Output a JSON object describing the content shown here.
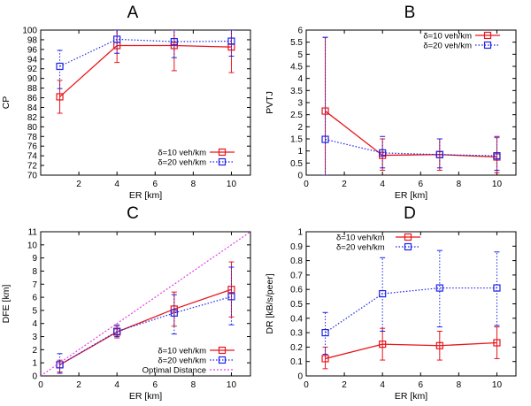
{
  "colors": {
    "s10": "#e8141b",
    "s20": "#1c23e6",
    "optimal": "#e040e8",
    "axis": "#000000"
  },
  "chart_data": [
    {
      "type": "line",
      "panel_title": "A",
      "xlabel": "ER [km]",
      "ylabel": "CP",
      "xlim": [
        0,
        11
      ],
      "ylim": [
        70,
        100
      ],
      "xticks": [
        "2",
        "4",
        "6",
        "8",
        "10"
      ],
      "yticks": [
        "70",
        "72",
        "74",
        "76",
        "78",
        "80",
        "82",
        "84",
        "86",
        "88",
        "90",
        "92",
        "94",
        "96",
        "98",
        "100"
      ],
      "legend_position": "bottom-right",
      "series": [
        {
          "name": "δ=10 veh/km",
          "key": "s10",
          "x": [
            1,
            4,
            7,
            10
          ],
          "y": [
            86.2,
            96.8,
            96.8,
            96.5
          ],
          "err_low": [
            82.8,
            93.3,
            91.6,
            91.2
          ],
          "err_high": [
            89.6,
            100.0,
            100.0,
            100.0
          ]
        },
        {
          "name": "δ=20 veh/km",
          "key": "s20",
          "x": [
            1,
            4,
            7,
            10
          ],
          "y": [
            92.5,
            98.1,
            97.6,
            97.7
          ],
          "err_low": [
            87.9,
            95.2,
            94.3,
            94.6
          ],
          "err_high": [
            95.8,
            100.0,
            100.0,
            100.0
          ]
        }
      ]
    },
    {
      "type": "line",
      "panel_title": "B",
      "xlabel": "ER [km]",
      "ylabel": "PVTJ",
      "xlim": [
        0,
        11
      ],
      "ylim": [
        0,
        6
      ],
      "xticks": [
        "0",
        "2",
        "4",
        "6",
        "8",
        "10"
      ],
      "yticks": [
        "0",
        "0.5",
        "1",
        "1.5",
        "2",
        "2.5",
        "3",
        "3.5",
        "4",
        "4.5",
        "5",
        "5.5",
        "6"
      ],
      "legend_position": "top-right",
      "series": [
        {
          "name": "δ=10 veh/km",
          "key": "s10",
          "x": [
            1,
            4,
            7,
            10
          ],
          "y": [
            2.65,
            0.82,
            0.85,
            0.75
          ],
          "err_low": [
            0.0,
            0.2,
            0.2,
            0.1
          ],
          "err_high": [
            5.7,
            1.5,
            1.5,
            1.55
          ]
        },
        {
          "name": "δ=20 veh/km",
          "key": "s20",
          "x": [
            1,
            4,
            7,
            10
          ],
          "y": [
            1.48,
            0.92,
            0.85,
            0.8
          ],
          "err_low": [
            0.0,
            0.3,
            0.3,
            0.2
          ],
          "err_high": [
            5.7,
            1.6,
            1.5,
            1.6
          ]
        }
      ]
    },
    {
      "type": "line",
      "panel_title": "C",
      "xlabel": "ER [km]",
      "ylabel": "DFE [km]",
      "xlim": [
        0,
        11
      ],
      "ylim": [
        0,
        11
      ],
      "xticks": [
        "0",
        "2",
        "4",
        "6",
        "8",
        "10"
      ],
      "yticks": [
        "0",
        "1",
        "2",
        "3",
        "4",
        "5",
        "6",
        "7",
        "8",
        "9",
        "10",
        "11"
      ],
      "legend_position": "bottom-right",
      "series": [
        {
          "name": "δ=10 veh/km",
          "key": "s10",
          "x": [
            1,
            4,
            7,
            10
          ],
          "y": [
            0.85,
            3.35,
            5.1,
            6.6
          ],
          "err_low": [
            0.3,
            2.9,
            3.8,
            4.5
          ],
          "err_high": [
            1.2,
            3.8,
            6.4,
            8.7
          ]
        },
        {
          "name": "δ=20 veh/km",
          "key": "s20",
          "x": [
            1,
            4,
            7,
            10
          ],
          "y": [
            0.85,
            3.4,
            4.8,
            6.05
          ],
          "err_low": [
            0.2,
            3.0,
            3.2,
            3.9
          ],
          "err_high": [
            1.7,
            3.9,
            6.2,
            8.3
          ]
        },
        {
          "name": "Optimal Distance",
          "key": "optimal",
          "x": [
            0,
            11
          ],
          "y": [
            0,
            11
          ],
          "no_markers": true
        }
      ]
    },
    {
      "type": "line",
      "panel_title": "D",
      "xlabel": "ER [km]",
      "ylabel": "DR [kB/s/peer]",
      "xlim": [
        0,
        11
      ],
      "ylim": [
        0,
        1
      ],
      "xticks": [
        "0",
        "2",
        "4",
        "6",
        "8",
        "10"
      ],
      "yticks": [
        "0",
        "0.1",
        "0.2",
        "0.3",
        "0.4",
        "0.5",
        "0.6",
        "0.7",
        "0.8",
        "0.9",
        "1"
      ],
      "legend_position": "top-left",
      "series": [
        {
          "name": "δ=10 veh/km",
          "key": "s10",
          "x": [
            1,
            4,
            7,
            10
          ],
          "y": [
            0.12,
            0.22,
            0.21,
            0.23
          ],
          "err_low": [
            0.05,
            0.11,
            0.11,
            0.12
          ],
          "err_high": [
            0.2,
            0.33,
            0.31,
            0.34
          ]
        },
        {
          "name": "δ=20 veh/km",
          "key": "s20",
          "x": [
            1,
            4,
            7,
            10
          ],
          "y": [
            0.3,
            0.57,
            0.61,
            0.61
          ],
          "err_low": [
            0.15,
            0.31,
            0.34,
            0.35
          ],
          "err_high": [
            0.44,
            0.82,
            0.87,
            0.86
          ]
        }
      ]
    }
  ]
}
